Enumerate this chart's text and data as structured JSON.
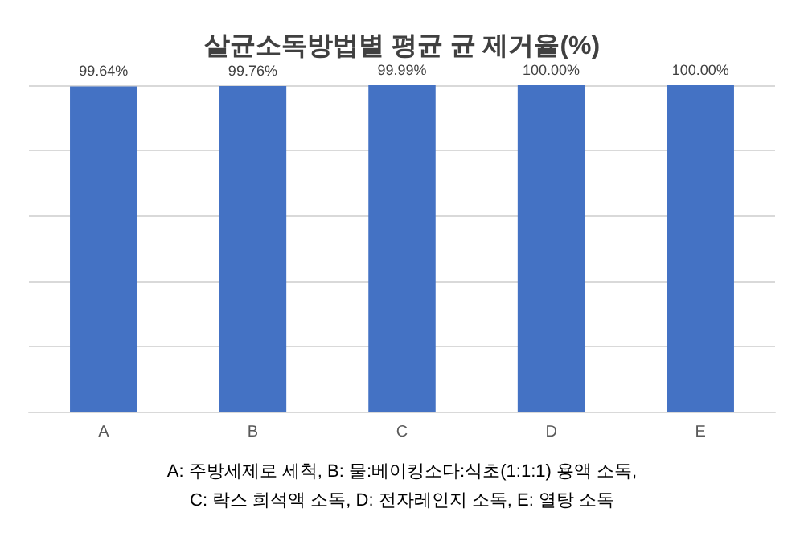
{
  "chart_data": {
    "type": "bar",
    "title": "살균소독방법별 평균 균 제거율(%)",
    "categories": [
      "A",
      "B",
      "C",
      "D",
      "E"
    ],
    "values": [
      99.64,
      99.76,
      99.99,
      100.0,
      100.0
    ],
    "value_labels": [
      "99.64%",
      "99.76%",
      "99.99%",
      "100.00%",
      "100.00%"
    ],
    "color": "#4472c4",
    "grid": "y",
    "tick_labels": "x",
    "annotations": [
      "A: 주방세제로 세척, B: 물:베이킹소다:식초(1:1:1) 용액 소독,",
      "C: 락스 희석액 소독, D: 전자레인지 소독, E: 열탕 소독"
    ]
  }
}
